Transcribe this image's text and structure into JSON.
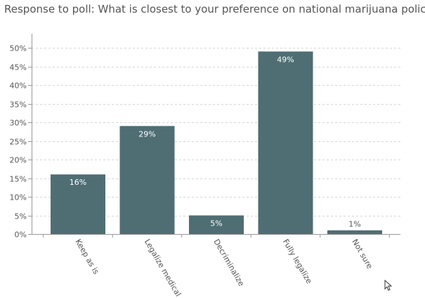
{
  "chart_data": {
    "type": "bar",
    "title": "Response to poll: What is closest to your preference on national marijuana policy?",
    "xlabel": "",
    "ylabel": "",
    "categories": [
      "Keep as is",
      "Legalize medical",
      "Decriminalize",
      "Fully legalize",
      "Not sure"
    ],
    "values": [
      16,
      29,
      5,
      49,
      1
    ],
    "data_labels": [
      "16%",
      "29%",
      "5%",
      "49%",
      "1%"
    ],
    "ylim": [
      0,
      50
    ],
    "yticks": [
      0,
      5,
      10,
      15,
      20,
      25,
      30,
      35,
      40,
      45,
      50
    ],
    "ytick_labels": [
      "0%",
      "5%",
      "10%",
      "15%",
      "20%",
      "25%",
      "30%",
      "35%",
      "40%",
      "45%",
      "50%"
    ],
    "grid": true,
    "legend": "none",
    "colors": {
      "bar": "#4f6e74",
      "grid": "#d6d6d6",
      "axis": "#999999",
      "tick_text": "#555555",
      "label_inside": "#ffffff",
      "label_outside": "#555555"
    }
  }
}
